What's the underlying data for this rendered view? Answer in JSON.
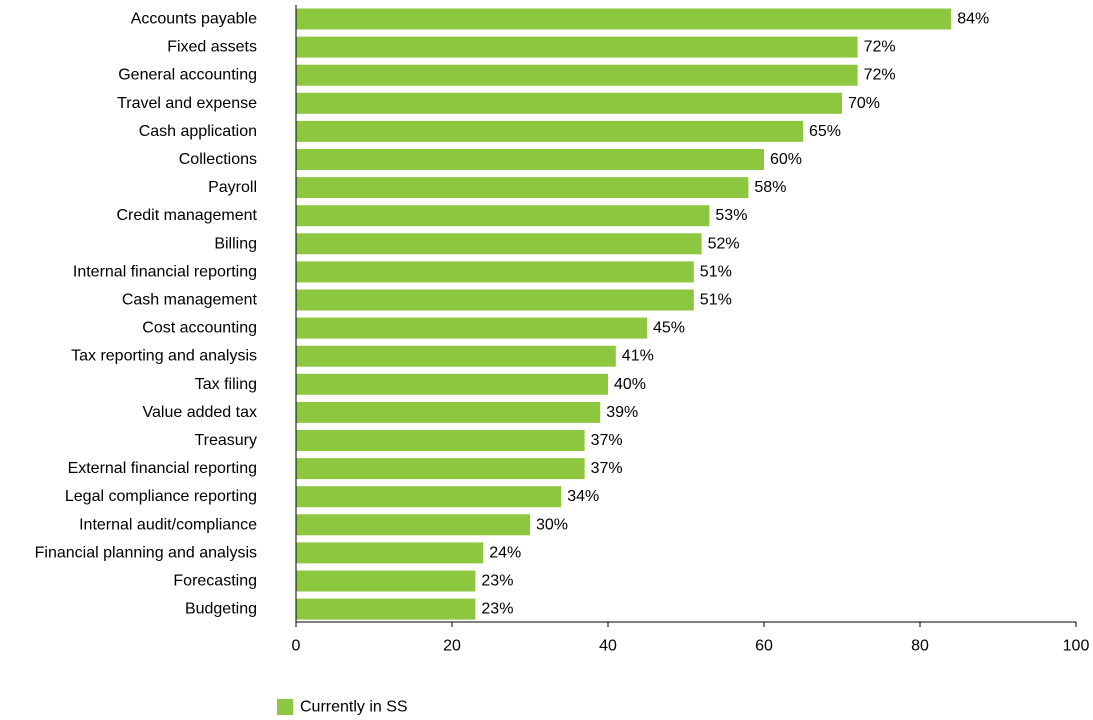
{
  "chart_data": {
    "type": "bar",
    "orientation": "horizontal",
    "categories": [
      "Accounts payable",
      "Fixed assets",
      "General accounting",
      "Travel and expense",
      "Cash application",
      "Collections",
      "Payroll",
      "Credit management",
      "Billing",
      "Internal financial reporting",
      "Cash management",
      "Cost accounting",
      "Tax reporting and analysis",
      "Tax filing",
      "Value added tax",
      "Treasury",
      "External financial reporting",
      "Legal compliance reporting",
      "Internal audit/compliance",
      "Financial planning and analysis",
      "Forecasting",
      "Budgeting"
    ],
    "series": [
      {
        "name": "Currently in SS",
        "values": [
          84,
          72,
          72,
          70,
          65,
          60,
          58,
          53,
          52,
          51,
          51,
          45,
          41,
          40,
          39,
          37,
          37,
          34,
          30,
          24,
          23,
          23
        ],
        "labels": [
          "84%",
          "72%",
          "72%",
          "70%",
          "65%",
          "60%",
          "58%",
          "53%",
          "52%",
          "51%",
          "51%",
          "45%",
          "41%",
          "40%",
          "39%",
          "37%",
          "37%",
          "34%",
          "30%",
          "24%",
          "23%",
          "23%"
        ]
      }
    ],
    "xlim": [
      0,
      100
    ],
    "xticks": [
      0,
      20,
      40,
      60,
      80,
      100
    ],
    "xtick_labels": [
      "0",
      "20",
      "40",
      "60",
      "80",
      "100"
    ],
    "grid": false,
    "legend_position": "bottom-left",
    "bar_color": "#8dc63f"
  }
}
